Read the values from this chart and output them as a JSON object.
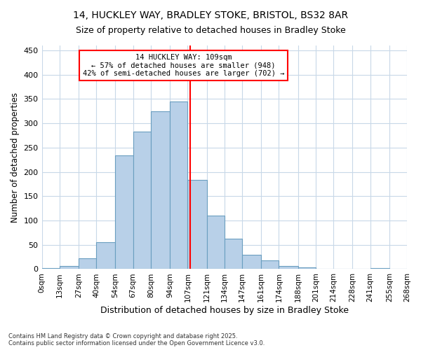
{
  "title1": "14, HUCKLEY WAY, BRADLEY STOKE, BRISTOL, BS32 8AR",
  "title2": "Size of property relative to detached houses in Bradley Stoke",
  "xlabel": "Distribution of detached houses by size in Bradley Stoke",
  "ylabel": "Number of detached properties",
  "bar_labels": [
    "0sqm",
    "13sqm",
    "27sqm",
    "40sqm",
    "54sqm",
    "67sqm",
    "80sqm",
    "94sqm",
    "107sqm",
    "121sqm",
    "134sqm",
    "147sqm",
    "161sqm",
    "174sqm",
    "188sqm",
    "201sqm",
    "214sqm",
    "228sqm",
    "241sqm",
    "255sqm",
    "268sqm"
  ],
  "bar_values": [
    2,
    6,
    22,
    55,
    234,
    283,
    325,
    345,
    183,
    110,
    62,
    30,
    18,
    6,
    3,
    1,
    0,
    0,
    2,
    0
  ],
  "bar_color": "#b8d0e8",
  "bar_edge_color": "#6a9ec0",
  "bin_edges": [
    0,
    13,
    27,
    40,
    54,
    67,
    80,
    94,
    107,
    121,
    134,
    147,
    161,
    174,
    188,
    201,
    214,
    228,
    241,
    255,
    268
  ],
  "property_line_x": 109,
  "annotation_title": "14 HUCKLEY WAY: 109sqm",
  "annotation_line1": "← 57% of detached houses are smaller (948)",
  "annotation_line2": "42% of semi-detached houses are larger (702) →",
  "ylim": [
    0,
    460
  ],
  "yticks": [
    0,
    50,
    100,
    150,
    200,
    250,
    300,
    350,
    400,
    450
  ],
  "footer1": "Contains HM Land Registry data © Crown copyright and database right 2025.",
  "footer2": "Contains public sector information licensed under the Open Government Licence v3.0.",
  "bg_color": "#ffffff",
  "grid_color": "#c8d8e8"
}
